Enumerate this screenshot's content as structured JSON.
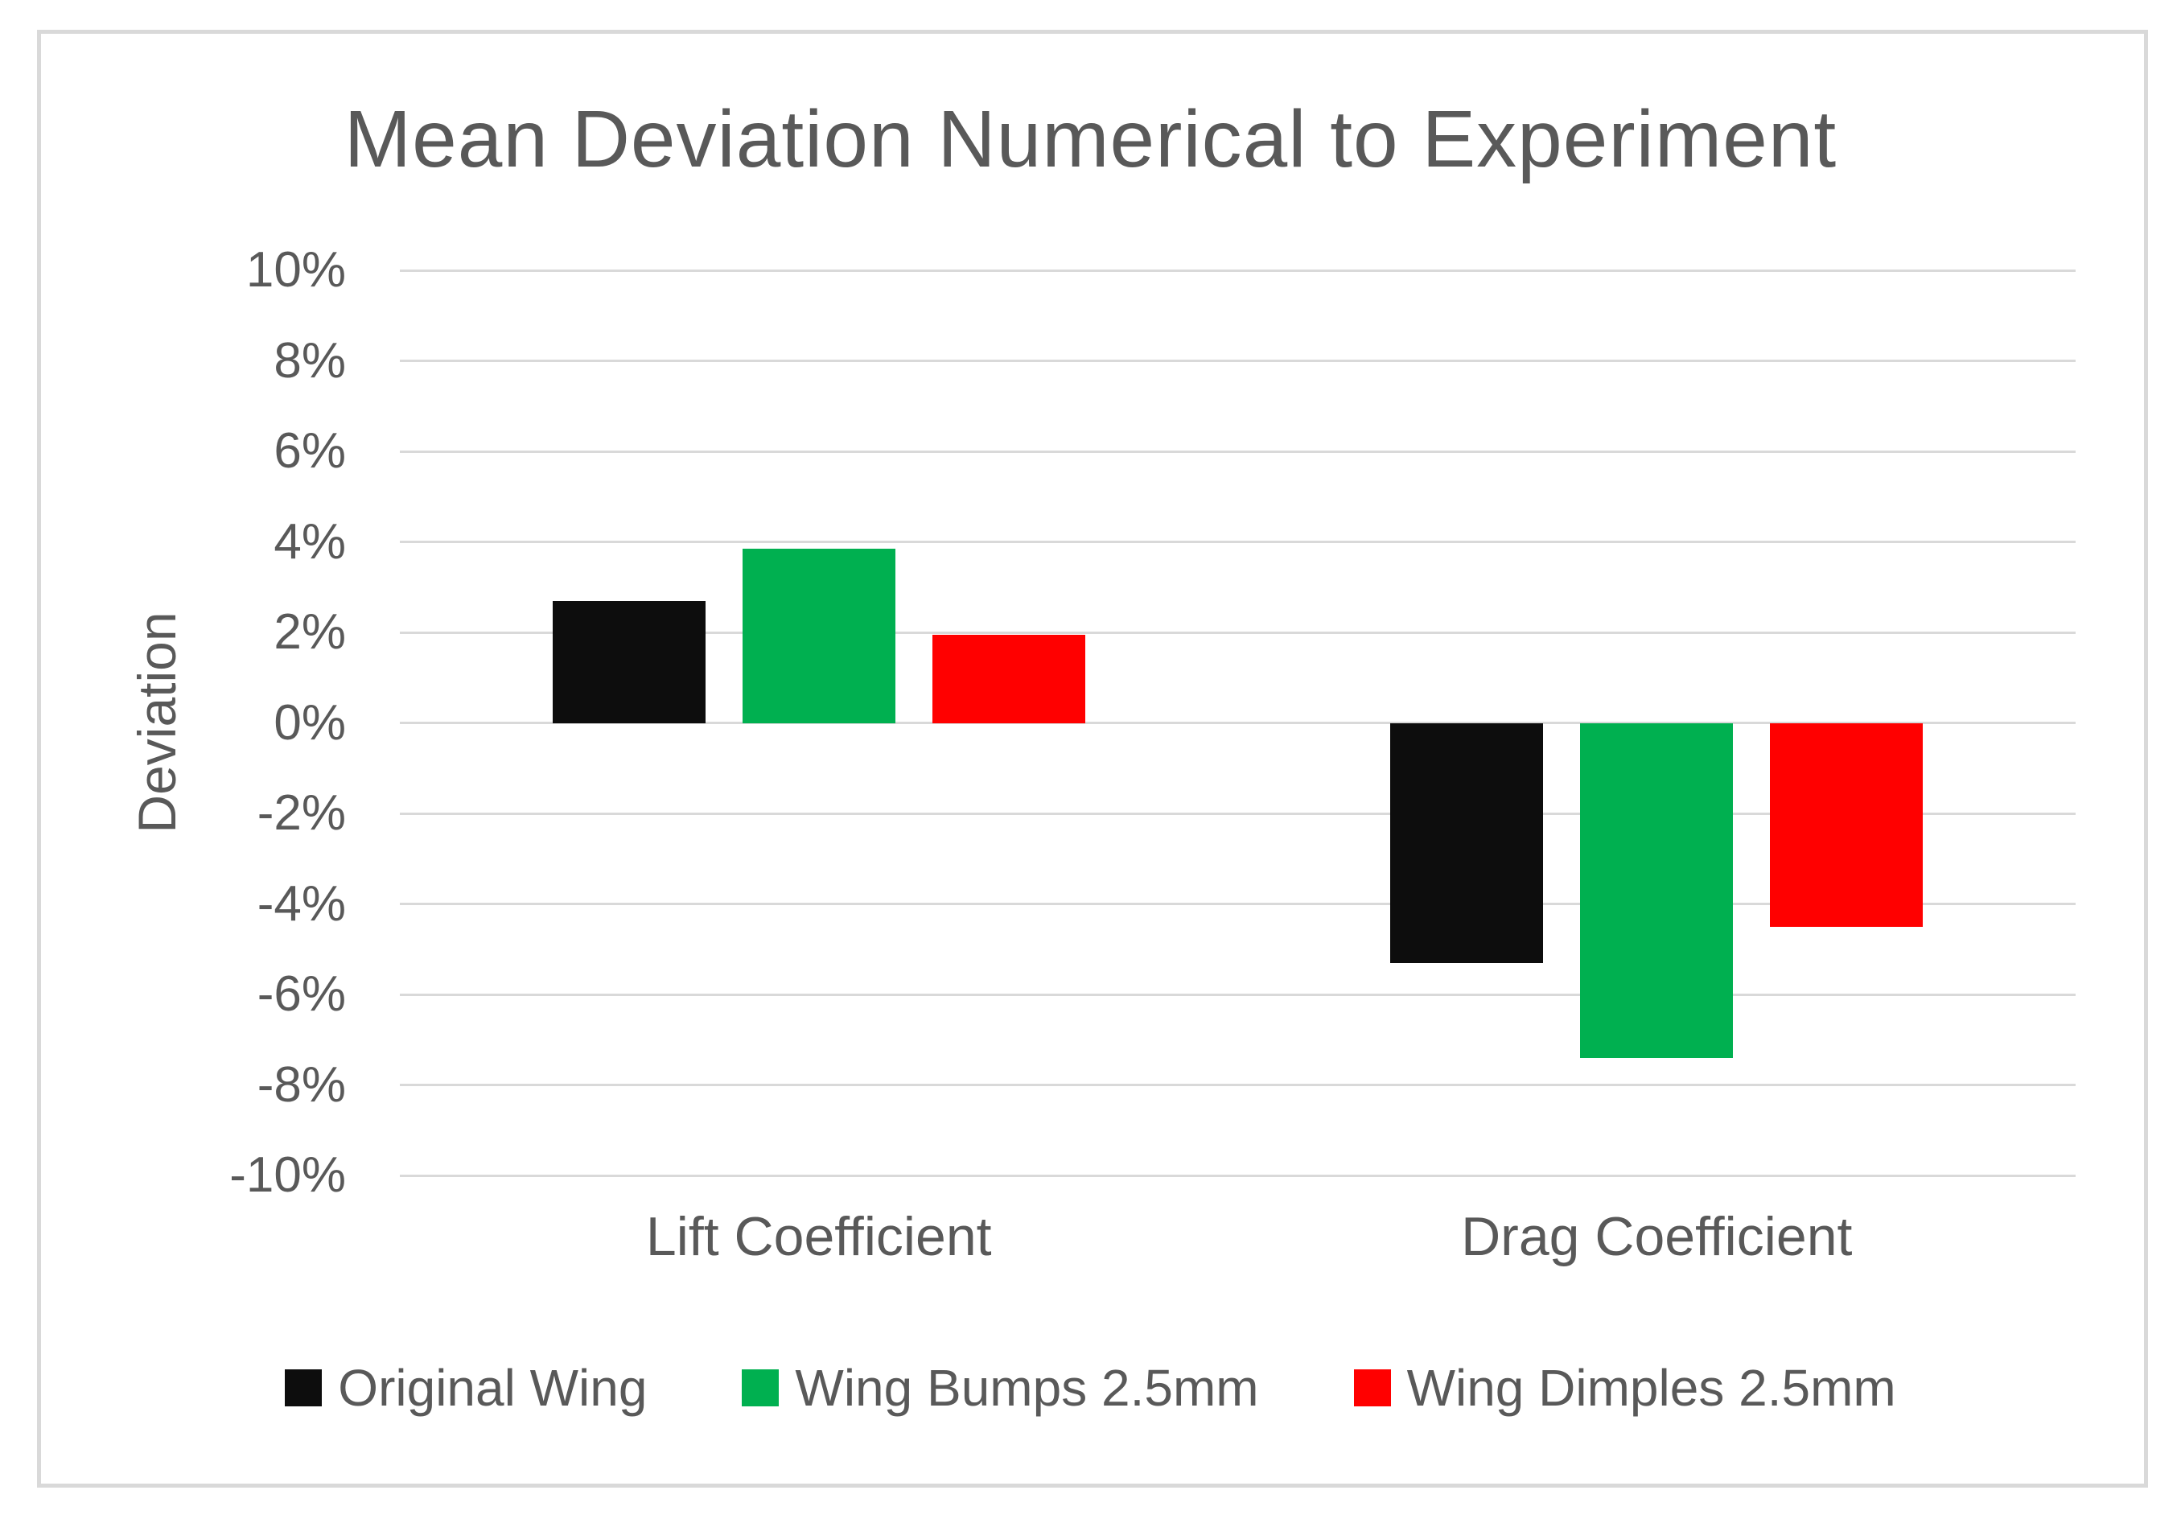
{
  "page": {
    "background_color": "#ffffff",
    "frame_border_color": "#d9d9d9"
  },
  "chart_data": {
    "type": "bar",
    "title": "Mean Deviation Numerical to Experiment",
    "xlabel": "",
    "ylabel": "Deviation",
    "categories": [
      "Lift Coefficient",
      "Drag Coefficient"
    ],
    "series": [
      {
        "name": "Original Wing",
        "color": "#0d0d0d",
        "values": [
          2.7,
          -5.3
        ]
      },
      {
        "name": "Wing Bumps 2.5mm",
        "color": "#00b050",
        "values": [
          3.85,
          -7.4
        ]
      },
      {
        "name": "Wing Dimples 2.5mm",
        "color": "#ff0000",
        "values": [
          1.95,
          -4.5
        ]
      }
    ],
    "y_axis": {
      "min": -10,
      "max": 10,
      "step": 2,
      "unit": "percent",
      "tick_labels": [
        "10%",
        "8%",
        "6%",
        "4%",
        "2%",
        "0%",
        "-2%",
        "-4%",
        "-6%",
        "-8%",
        "-10%"
      ]
    },
    "grid": true,
    "gridline_color": "#d9d9d9",
    "text_color": "#595959",
    "legend_position": "bottom"
  }
}
